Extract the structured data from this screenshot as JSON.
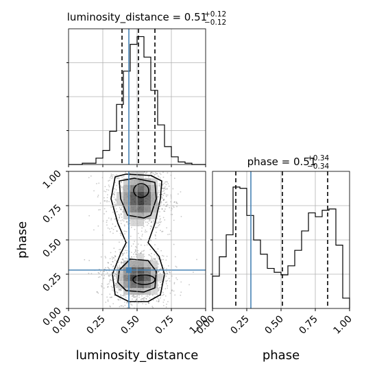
{
  "chart_data": {
    "type": "corner",
    "parameters": [
      "luminosity_distance",
      "phase"
    ],
    "truth": {
      "luminosity_distance": 0.44,
      "phase": 0.28
    },
    "panels": [
      {
        "id": "hist_luminosity_distance",
        "type": "histogram",
        "parameter": "luminosity_distance",
        "title_name": "luminosity_distance",
        "title_value": "0.51",
        "title_plus": "+0.12",
        "title_minus": "−0.12",
        "quantiles": [
          0.39,
          0.51,
          0.63
        ],
        "xlim": [
          0.0,
          1.0
        ],
        "grid": true,
        "bins": [
          0.0,
          0.05,
          0.1,
          0.15,
          0.2,
          0.25,
          0.3,
          0.35,
          0.4,
          0.45,
          0.5,
          0.55,
          0.6,
          0.65,
          0.7,
          0.75,
          0.8,
          0.85,
          0.9,
          0.95,
          1.0
        ],
        "values": [
          0.0,
          0.0,
          0.01,
          0.01,
          0.05,
          0.11,
          0.26,
          0.47,
          0.73,
          0.94,
          1.0,
          0.84,
          0.58,
          0.31,
          0.14,
          0.06,
          0.02,
          0.01,
          0.0,
          0.0
        ]
      },
      {
        "id": "hist_phase",
        "type": "histogram",
        "parameter": "phase",
        "title_name": "phase",
        "title_value": "0.51",
        "title_plus": "+0.34",
        "title_minus": "−0.34",
        "quantiles": [
          0.17,
          0.51,
          0.84
        ],
        "xlim": [
          0.0,
          1.0
        ],
        "grid": true,
        "bins": [
          0.0,
          0.05,
          0.1,
          0.15,
          0.2,
          0.25,
          0.3,
          0.35,
          0.4,
          0.45,
          0.5,
          0.55,
          0.6,
          0.65,
          0.7,
          0.75,
          0.8,
          0.85,
          0.9,
          0.95,
          1.0
        ],
        "values": [
          0.25,
          0.4,
          0.57,
          0.94,
          0.93,
          0.72,
          0.53,
          0.42,
          0.31,
          0.28,
          0.26,
          0.33,
          0.45,
          0.6,
          0.74,
          0.71,
          0.76,
          0.77,
          0.49,
          0.08
        ]
      },
      {
        "id": "joint_luminosity_distance_phase",
        "type": "2d_density",
        "x": "luminosity_distance",
        "y": "phase",
        "xlim": [
          0.0,
          1.0
        ],
        "ylim": [
          0.0,
          1.0
        ],
        "grid": true,
        "modes": [
          {
            "x": 0.52,
            "y": 0.8
          },
          {
            "x": 0.51,
            "y": 0.23
          }
        ]
      }
    ],
    "x_ticks": [
      "0.00",
      "0.25",
      "0.50",
      "0.75",
      "1.00"
    ],
    "y_ticks": [
      "0.00",
      "0.25",
      "0.50",
      "0.75",
      "1.00"
    ],
    "xlabels": [
      "luminosity_distance",
      "phase"
    ],
    "ylabel": "phase",
    "colors": {
      "truth": "#4682b4",
      "hist": "#000000",
      "grid": "#b0b0b0",
      "quantile": "#000000"
    }
  }
}
